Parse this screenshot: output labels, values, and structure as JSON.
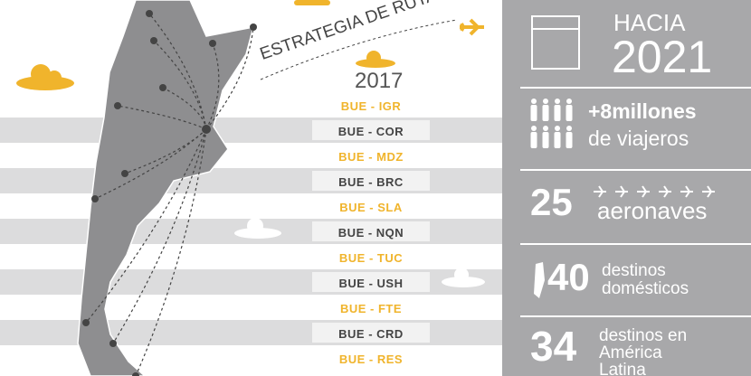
{
  "header": {
    "title": "ESTRATEGIA DE RUTAS",
    "year": "2017"
  },
  "routes": [
    "BUE - IGR",
    "BUE - COR",
    "BUE - MDZ",
    "BUE - BRC",
    "BUE - SLA",
    "BUE - NQN",
    "BUE - TUC",
    "BUE - USH",
    "BUE - FTE",
    "BUE - CRD",
    "BUE - RES"
  ],
  "panel": {
    "heading": {
      "line1": "HACIA",
      "line2": "2021"
    },
    "travelers": {
      "line1": "+8millones",
      "line2": "de viajeros"
    },
    "aircraft": {
      "number": "25",
      "label": "aeronaves"
    },
    "domestic": {
      "number": "40",
      "line1": "destinos",
      "line2": "domésticos"
    },
    "latam": {
      "number": "34",
      "line1": "destinos en",
      "line2": "América",
      "line3": "Latina"
    }
  }
}
